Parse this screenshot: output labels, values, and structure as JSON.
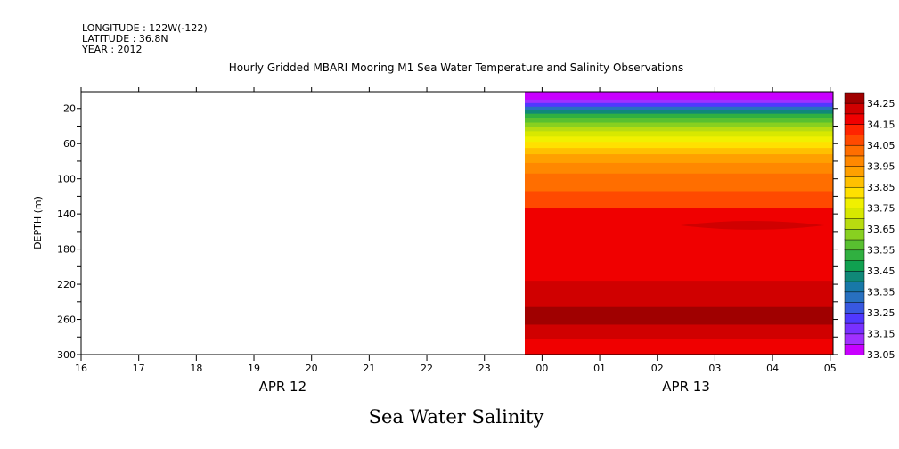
{
  "header": {
    "longitude": "LONGITUDE : 122W(-122)",
    "latitude": "LATITUDE : 36.8N",
    "year": "YEAR : 2012"
  },
  "chart_data": {
    "type": "heatmap",
    "title": "Hourly Gridded MBARI Mooring M1 Sea Water Temperature and Salinity Observations",
    "ylabel": "DEPTH (m)",
    "variable_label": "Sea Water Salinity",
    "x_ticks": [
      "16",
      "17",
      "18",
      "19",
      "20",
      "21",
      "22",
      "23",
      "00",
      "01",
      "02",
      "03",
      "04",
      "05"
    ],
    "x_range_hours": [
      16,
      29.05
    ],
    "data_start_hour": 23.7,
    "date_labels": [
      {
        "label": "APR 12",
        "center_hour": 19.5
      },
      {
        "label": "APR 13",
        "center_hour": 26.5
      }
    ],
    "y_ticks": [
      20,
      60,
      100,
      140,
      180,
      220,
      260,
      300
    ],
    "ylim": [
      300,
      1
    ],
    "y_inverted": true,
    "colorbar": {
      "levels": [
        33.05,
        33.1,
        33.15,
        33.2,
        33.25,
        33.3,
        33.35,
        33.4,
        33.45,
        33.5,
        33.55,
        33.6,
        33.65,
        33.7,
        33.75,
        33.8,
        33.85,
        33.9,
        33.95,
        34.0,
        34.05,
        34.1,
        34.15,
        34.2,
        34.25,
        34.3
      ],
      "labels": [
        "33.05",
        "33.15",
        "33.25",
        "33.35",
        "33.45",
        "33.55",
        "33.65",
        "33.75",
        "33.85",
        "33.95",
        "34.05",
        "34.15",
        "34.25"
      ],
      "colors": [
        "#c800ff",
        "#a030ff",
        "#7830ff",
        "#5038ff",
        "#3858e0",
        "#2870c0",
        "#1878a8",
        "#108878",
        "#10a050",
        "#30b040",
        "#58c030",
        "#88d020",
        "#b8dc10",
        "#d8e800",
        "#f0f000",
        "#ffe000",
        "#ffc000",
        "#ffa000",
        "#ff8800",
        "#ff6e00",
        "#ff4a00",
        "#ff2400",
        "#f00000",
        "#d00000",
        "#a00000"
      ]
    },
    "salinity_profile": [
      {
        "depth": 1,
        "value": 33.05
      },
      {
        "depth": 10,
        "value": 33.08
      },
      {
        "depth": 18,
        "value": 33.32
      },
      {
        "depth": 26,
        "value": 33.5
      },
      {
        "depth": 36,
        "value": 33.68
      },
      {
        "depth": 46,
        "value": 33.8
      },
      {
        "depth": 56,
        "value": 33.86
      },
      {
        "depth": 66,
        "value": 33.92
      },
      {
        "depth": 80,
        "value": 33.97
      },
      {
        "depth": 100,
        "value": 34.02
      },
      {
        "depth": 120,
        "value": 34.06
      },
      {
        "depth": 134,
        "value": 34.11
      },
      {
        "depth": 150,
        "value": 34.14
      },
      {
        "depth": 170,
        "value": 34.14
      },
      {
        "depth": 200,
        "value": 34.14
      },
      {
        "depth": 215,
        "value": 34.16
      },
      {
        "depth": 230,
        "value": 34.21
      },
      {
        "depth": 248,
        "value": 34.26
      },
      {
        "depth": 268,
        "value": 34.23
      },
      {
        "depth": 285,
        "value": 34.18
      },
      {
        "depth": 300,
        "value": 34.15
      }
    ],
    "layers": [
      {
        "top": 1,
        "bottom": 10,
        "color": "#c800ff"
      },
      {
        "top": 10,
        "bottom": 14,
        "color": "#a030ff"
      },
      {
        "top": 14,
        "bottom": 18,
        "color": "#5038ff"
      },
      {
        "top": 18,
        "bottom": 22,
        "color": "#2870c0"
      },
      {
        "top": 22,
        "bottom": 26,
        "color": "#108878"
      },
      {
        "top": 26,
        "bottom": 31,
        "color": "#30b040"
      },
      {
        "top": 31,
        "bottom": 36,
        "color": "#58c030"
      },
      {
        "top": 36,
        "bottom": 41,
        "color": "#88d020"
      },
      {
        "top": 41,
        "bottom": 46,
        "color": "#b8dc10"
      },
      {
        "top": 46,
        "bottom": 52,
        "color": "#d8e800"
      },
      {
        "top": 52,
        "bottom": 58,
        "color": "#f0f000"
      },
      {
        "top": 58,
        "bottom": 65,
        "color": "#ffe000"
      },
      {
        "top": 65,
        "bottom": 72,
        "color": "#ffc000"
      },
      {
        "top": 72,
        "bottom": 82,
        "color": "#ffa000"
      },
      {
        "top": 82,
        "bottom": 94,
        "color": "#ff8800"
      },
      {
        "top": 94,
        "bottom": 114,
        "color": "#ff6e00"
      },
      {
        "top": 114,
        "bottom": 133,
        "color": "#ff4a00"
      },
      {
        "top": 133,
        "bottom": 216,
        "color": "#f00000"
      },
      {
        "top": 216,
        "bottom": 228,
        "color": "#d00000"
      },
      {
        "top": 228,
        "bottom": 246,
        "color": "#d00000"
      },
      {
        "top": 246,
        "bottom": 266,
        "color": "#a00000"
      },
      {
        "top": 266,
        "bottom": 282,
        "color": "#d00000"
      },
      {
        "top": 282,
        "bottom": 300,
        "color": "#f00000"
      }
    ],
    "features": [
      {
        "kind": "lens",
        "depth": 153,
        "hour_from": 26.4,
        "hour_to": 28.9,
        "half_thickness_m": 5,
        "color": "#d00000"
      }
    ]
  }
}
